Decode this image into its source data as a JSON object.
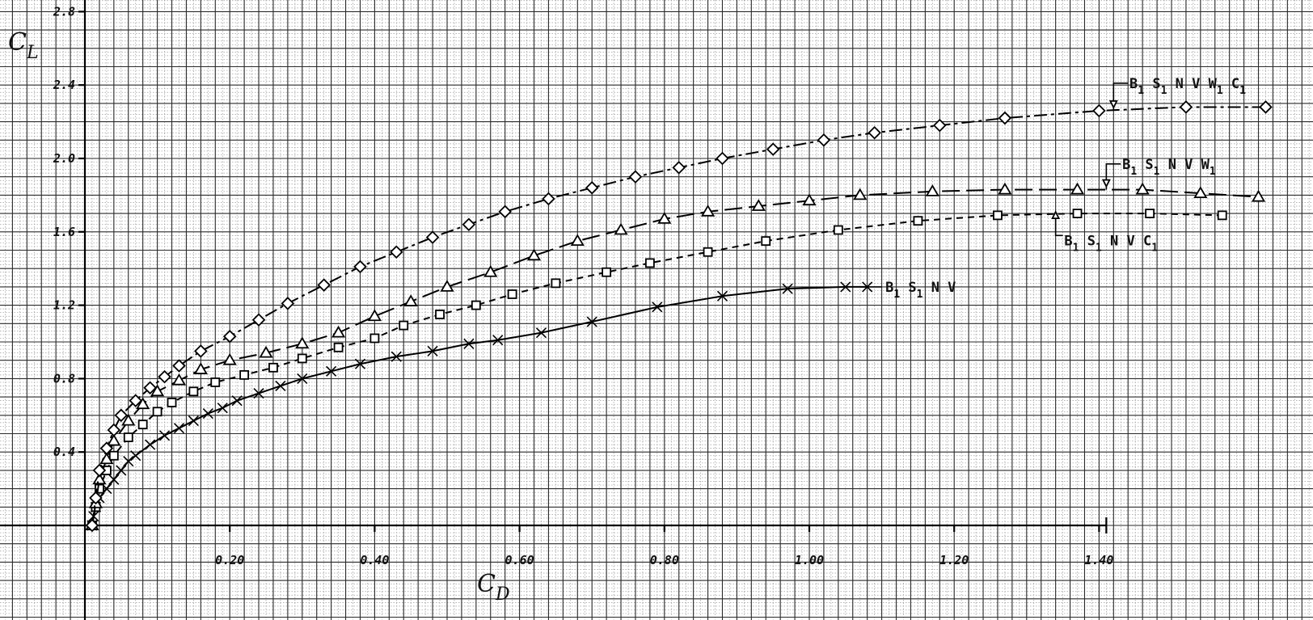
{
  "chart_data": {
    "type": "line",
    "title": "",
    "xlabel": "C_D",
    "ylabel": "C_L",
    "xlim": [
      -0.02,
      1.55
    ],
    "ylim": [
      -0.05,
      2.8
    ],
    "grid": true,
    "x_ticks": [
      {
        "value": 0.2,
        "label": "0.20"
      },
      {
        "value": 0.4,
        "label": "0.40"
      },
      {
        "value": 0.6,
        "label": "0.60"
      },
      {
        "value": 0.8,
        "label": "0.80"
      },
      {
        "value": 1.0,
        "label": "1.00"
      },
      {
        "value": 1.2,
        "label": "1.20"
      },
      {
        "value": 1.4,
        "label": "1.40"
      }
    ],
    "y_ticks": [
      {
        "value": 0.4,
        "label": "0.4"
      },
      {
        "value": 0.8,
        "label": "0.8"
      },
      {
        "value": 1.2,
        "label": "1.2"
      },
      {
        "value": 1.6,
        "label": "1.6"
      },
      {
        "value": 2.0,
        "label": "2.0"
      },
      {
        "value": 2.4,
        "label": "2.4"
      },
      {
        "value": 2.8,
        "label": "2.8"
      }
    ],
    "series": [
      {
        "name": "B1 S1 N V",
        "marker": "x",
        "linestyle": "solid",
        "x": [
          0.01,
          0.012,
          0.015,
          0.02,
          0.03,
          0.04,
          0.05,
          0.06,
          0.07,
          0.09,
          0.11,
          0.13,
          0.15,
          0.17,
          0.19,
          0.21,
          0.24,
          0.27,
          0.3,
          0.34,
          0.38,
          0.43,
          0.48,
          0.53,
          0.57,
          0.63,
          0.7,
          0.79,
          0.88,
          0.97,
          1.05,
          1.08
        ],
        "y": [
          0.0,
          0.05,
          0.1,
          0.15,
          0.2,
          0.25,
          0.3,
          0.35,
          0.38,
          0.44,
          0.49,
          0.53,
          0.57,
          0.61,
          0.64,
          0.68,
          0.72,
          0.76,
          0.8,
          0.84,
          0.88,
          0.92,
          0.95,
          0.99,
          1.01,
          1.05,
          1.11,
          1.19,
          1.25,
          1.29,
          1.3,
          1.3
        ]
      },
      {
        "name": "B1 S1 N V C1",
        "marker": "square",
        "linestyle": "short-dash",
        "x": [
          0.01,
          0.015,
          0.02,
          0.03,
          0.04,
          0.06,
          0.08,
          0.1,
          0.12,
          0.15,
          0.18,
          0.22,
          0.26,
          0.3,
          0.35,
          0.4,
          0.44,
          0.49,
          0.54,
          0.59,
          0.65,
          0.72,
          0.78,
          0.86,
          0.94,
          1.04,
          1.15,
          1.26,
          1.37,
          1.47,
          1.57
        ],
        "y": [
          0.0,
          0.1,
          0.2,
          0.3,
          0.38,
          0.48,
          0.55,
          0.62,
          0.67,
          0.73,
          0.78,
          0.82,
          0.86,
          0.91,
          0.97,
          1.02,
          1.09,
          1.15,
          1.2,
          1.26,
          1.32,
          1.38,
          1.43,
          1.49,
          1.55,
          1.61,
          1.66,
          1.69,
          1.7,
          1.7,
          1.69
        ]
      },
      {
        "name": "B1 S1 N V W1",
        "marker": "triangle",
        "linestyle": "long-dash",
        "x": [
          0.01,
          0.015,
          0.02,
          0.03,
          0.04,
          0.06,
          0.08,
          0.1,
          0.13,
          0.16,
          0.2,
          0.25,
          0.3,
          0.35,
          0.4,
          0.45,
          0.5,
          0.56,
          0.62,
          0.68,
          0.74,
          0.8,
          0.86,
          0.93,
          1.0,
          1.07,
          1.17,
          1.27,
          1.37,
          1.46,
          1.54,
          1.62
        ],
        "y": [
          0.0,
          0.12,
          0.25,
          0.36,
          0.46,
          0.57,
          0.66,
          0.73,
          0.79,
          0.85,
          0.9,
          0.94,
          0.99,
          1.05,
          1.14,
          1.22,
          1.3,
          1.38,
          1.47,
          1.55,
          1.61,
          1.67,
          1.71,
          1.74,
          1.77,
          1.8,
          1.82,
          1.83,
          1.83,
          1.83,
          1.81,
          1.79
        ]
      },
      {
        "name": "B1 S1 N V W1 C1",
        "marker": "diamond",
        "linestyle": "dash-dot",
        "x": [
          0.01,
          0.015,
          0.02,
          0.03,
          0.04,
          0.05,
          0.07,
          0.09,
          0.11,
          0.13,
          0.16,
          0.2,
          0.24,
          0.28,
          0.33,
          0.38,
          0.43,
          0.48,
          0.53,
          0.58,
          0.64,
          0.7,
          0.76,
          0.82,
          0.88,
          0.95,
          1.02,
          1.09,
          1.18,
          1.27,
          1.4,
          1.52,
          1.63
        ],
        "y": [
          0.0,
          0.15,
          0.3,
          0.42,
          0.52,
          0.6,
          0.68,
          0.75,
          0.81,
          0.87,
          0.95,
          1.03,
          1.12,
          1.21,
          1.31,
          1.41,
          1.49,
          1.57,
          1.64,
          1.71,
          1.78,
          1.84,
          1.9,
          1.95,
          2.0,
          2.05,
          2.1,
          2.14,
          2.18,
          2.22,
          2.26,
          2.28,
          2.28
        ]
      }
    ]
  },
  "labels": {
    "xlabel_main": "C",
    "xlabel_sub": "D",
    "ylabel_main": "C",
    "ylabel_sub": "L",
    "series_x": {
      "parts": [
        "B",
        "1",
        " S",
        "1",
        " N V"
      ]
    },
    "series_c1": {
      "parts": [
        "B",
        "1",
        " S",
        "1",
        " N V C",
        "1"
      ]
    },
    "series_w1": {
      "parts": [
        "B",
        "1",
        " S",
        "1",
        " N V W",
        "1"
      ]
    },
    "series_w1c1": {
      "parts": [
        "B",
        "1",
        " S",
        "1",
        " N V W",
        "1",
        " C",
        "1"
      ]
    }
  }
}
